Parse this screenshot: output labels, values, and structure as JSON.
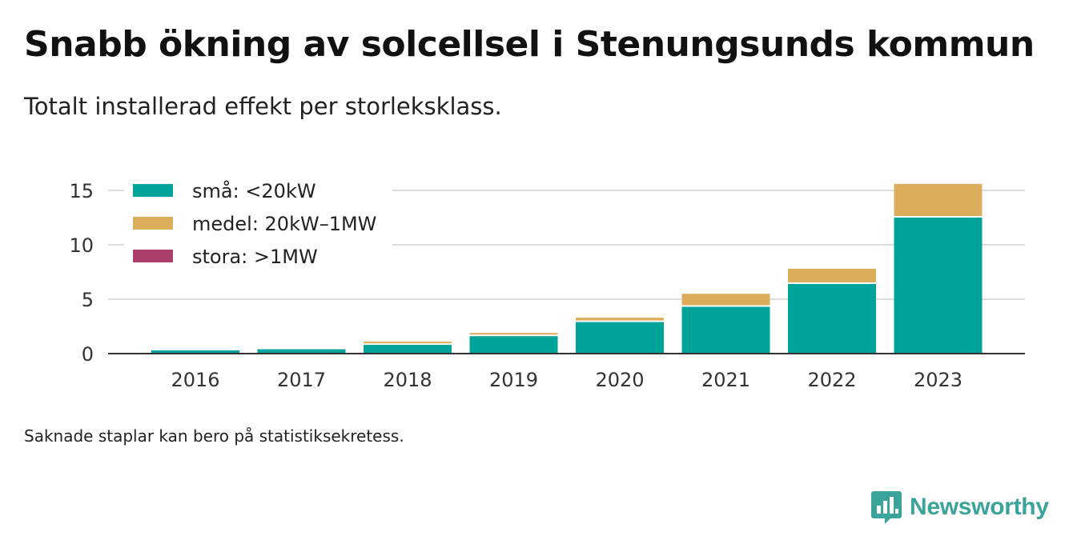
{
  "title": "Snabb ökning av solcellsel i Stenungsunds kommun",
  "subtitle": "Totalt installerad effekt per storleksklass.",
  "footnote": "Saknade staplar kan bero på statistiksekretess.",
  "brand": {
    "name": "Newsworthy",
    "logo_icon": "newsworthy-logo-icon",
    "color": "#3aa39a"
  },
  "chart_data": {
    "type": "bar",
    "stacked": true,
    "categories": [
      "2016",
      "2017",
      "2018",
      "2019",
      "2020",
      "2021",
      "2022",
      "2023"
    ],
    "series": [
      {
        "name": "små: <20kW",
        "color": "#00a39a",
        "values": [
          0.3,
          0.4,
          0.8,
          1.6,
          2.9,
          4.3,
          6.4,
          12.5
        ]
      },
      {
        "name": "medel: 20kW–1MW",
        "color": "#dcae5b",
        "values": [
          0.0,
          0.0,
          0.05,
          0.3,
          0.4,
          1.2,
          1.4,
          3.1
        ]
      },
      {
        "name": "stora: >1MW",
        "color": "#a83e6c",
        "values": [
          0,
          0,
          0,
          0,
          0,
          0,
          0,
          0
        ]
      }
    ],
    "yticks": [
      0,
      5,
      10,
      15
    ],
    "ylim": [
      0,
      16
    ],
    "xlabel": "",
    "ylabel": "",
    "grid": true,
    "legend_position": "top-left"
  }
}
